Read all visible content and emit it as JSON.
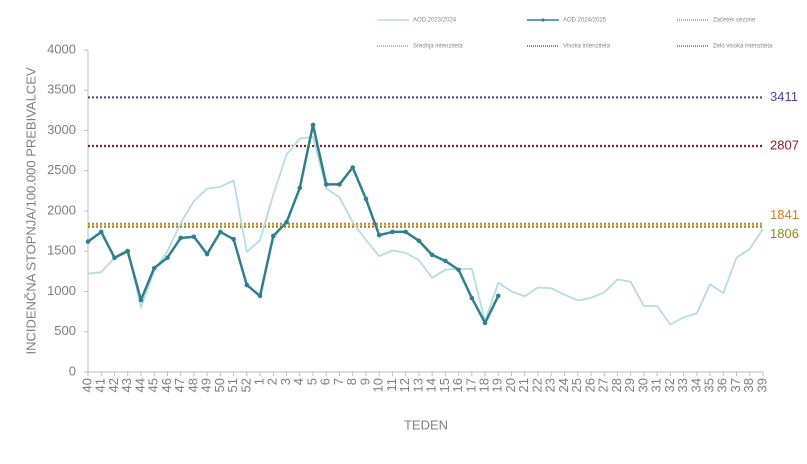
{
  "chart_data": {
    "type": "line",
    "y_label": "INCIDENČNA  STOPNJA/100.000  PREBIVALCEV",
    "x_label": "TEDEN",
    "categories": [
      "40",
      "41",
      "42",
      "43",
      "44",
      "45",
      "46",
      "47",
      "48",
      "49",
      "50",
      "51",
      "52",
      "1",
      "2",
      "3",
      "4",
      "5",
      "6",
      "7",
      "8",
      "9",
      "10",
      "11",
      "12",
      "13",
      "14",
      "15",
      "16",
      "17",
      "18",
      "19",
      "20",
      "21",
      "22",
      "23",
      "24",
      "25",
      "26",
      "27",
      "28",
      "29",
      "30",
      "31",
      "32",
      "33",
      "34",
      "35",
      "36",
      "37",
      "38",
      "39"
    ],
    "series": [
      {
        "name": "AOD 2023/2024",
        "color": "#b3dde5",
        "markers": false,
        "values": [
          1220,
          1240,
          1420,
          1530,
          800,
          1260,
          1500,
          1850,
          2120,
          2280,
          2300,
          2380,
          1490,
          1640,
          2200,
          2700,
          2900,
          2920,
          2280,
          2170,
          1860,
          1640,
          1440,
          1510,
          1480,
          1390,
          1170,
          1270,
          1280,
          1280,
          630,
          1110,
          1000,
          940,
          1050,
          1040,
          960,
          890,
          920,
          990,
          1150,
          1120,
          820,
          820,
          590,
          680,
          730,
          1090,
          980,
          1420,
          1530,
          1780
        ]
      },
      {
        "name": "AOD 2024/2025",
        "color": "#2f7f8f",
        "markers": true,
        "values": [
          1620,
          1740,
          1420,
          1500,
          895,
          1290,
          1420,
          1665,
          1680,
          1465,
          1740,
          1650,
          1080,
          945,
          1690,
          1860,
          2285,
          3070,
          2330,
          2330,
          2540,
          2150,
          1700,
          1740,
          1740,
          1630,
          1455,
          1380,
          1270,
          920,
          610,
          945,
          null,
          null,
          null,
          null,
          null,
          null,
          null,
          null,
          null,
          null,
          null,
          null,
          null,
          null,
          null,
          null,
          null,
          null,
          null,
          null
        ]
      }
    ],
    "reference_lines": [
      {
        "name": "Začetek sezone",
        "value": 1806,
        "color": "#8a8a1c"
      },
      {
        "name": "Srednja intenziteta",
        "value": 1841,
        "color": "#e07b20"
      },
      {
        "name": "Visoka intenziteta",
        "value": 2807,
        "color": "#8b1e1e"
      },
      {
        "name": "Zelo visoka intenziteta",
        "value": 3411,
        "color": "#5b4290"
      }
    ],
    "ylim": [
      0,
      4000
    ],
    "yticks": [
      0,
      500,
      1000,
      1500,
      2000,
      2500,
      3000,
      3500,
      4000
    ],
    "grid": false
  }
}
